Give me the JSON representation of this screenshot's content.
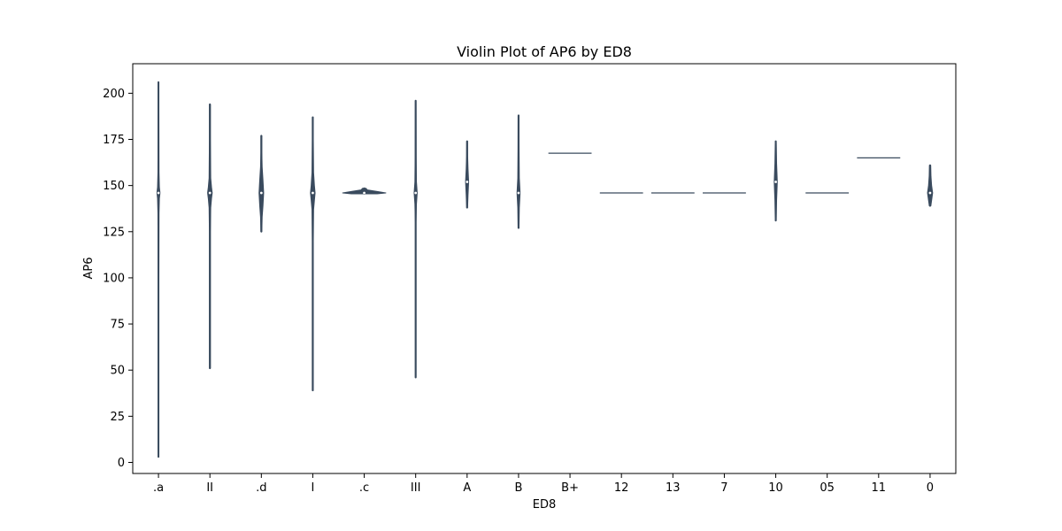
{
  "chart_data": {
    "type": "violin",
    "title": "Violin Plot of AP6 by ED8",
    "xlabel": "ED8",
    "ylabel": "AP6",
    "ylim": [
      -6,
      216
    ],
    "yticks": [
      0,
      25,
      50,
      75,
      100,
      125,
      150,
      175,
      200
    ],
    "grid": false,
    "legend": "none",
    "colors": {
      "violin": "#3a4b5e",
      "axes": "#000000",
      "background": "#ffffff"
    },
    "categories": [
      ".a",
      "II",
      ".d",
      "I",
      ".c",
      "III",
      "A",
      "B",
      "B+",
      "12",
      "13",
      "7",
      "10",
      "05",
      "11",
      "0"
    ],
    "violins": [
      {
        "category": ".a",
        "min": 3,
        "max": 206,
        "median": 146,
        "kind": "violin",
        "halfwidth": 0.03,
        "profile": [
          [
            3,
            0.25
          ],
          [
            100,
            0.25
          ],
          [
            135,
            0.35
          ],
          [
            143,
            0.6
          ],
          [
            146,
            1
          ],
          [
            149,
            0.6
          ],
          [
            157,
            0.35
          ],
          [
            190,
            0.25
          ],
          [
            206,
            0.25
          ]
        ]
      },
      {
        "category": "II",
        "min": 51,
        "max": 194,
        "median": 146,
        "kind": "violin",
        "halfwidth": 0.045,
        "profile": [
          [
            51,
            0.22
          ],
          [
            125,
            0.22
          ],
          [
            138,
            0.35
          ],
          [
            143,
            0.7
          ],
          [
            146,
            1
          ],
          [
            149,
            0.7
          ],
          [
            154,
            0.35
          ],
          [
            175,
            0.22
          ],
          [
            194,
            0.22
          ]
        ]
      },
      {
        "category": ".d",
        "min": 125,
        "max": 177,
        "median": 146,
        "kind": "violin",
        "halfwidth": 0.045,
        "profile": [
          [
            125,
            0.2
          ],
          [
            133,
            0.35
          ],
          [
            139,
            0.7
          ],
          [
            146,
            1
          ],
          [
            153,
            0.7
          ],
          [
            160,
            0.35
          ],
          [
            168,
            0.2
          ],
          [
            177,
            0.2
          ]
        ]
      },
      {
        "category": "I",
        "min": 39,
        "max": 187,
        "median": 146,
        "kind": "violin",
        "halfwidth": 0.045,
        "profile": [
          [
            39,
            0.22
          ],
          [
            120,
            0.22
          ],
          [
            137,
            0.35
          ],
          [
            142,
            0.7
          ],
          [
            146,
            1
          ],
          [
            150,
            0.7
          ],
          [
            157,
            0.35
          ],
          [
            175,
            0.22
          ],
          [
            187,
            0.22
          ]
        ]
      },
      {
        "category": ".c",
        "min": 145.5,
        "max": 148.5,
        "median": 146,
        "kind": "flat",
        "halfwidth": 0.42,
        "profile": [
          [
            145.5,
            0.6
          ],
          [
            146,
            1
          ],
          [
            146.8,
            0.6
          ],
          [
            147.6,
            0.15
          ],
          [
            148.5,
            0.08
          ]
        ]
      },
      {
        "category": "III",
        "min": 46,
        "max": 196,
        "median": 146,
        "kind": "violin",
        "halfwidth": 0.03,
        "profile": [
          [
            46,
            0.25
          ],
          [
            130,
            0.25
          ],
          [
            140,
            0.5
          ],
          [
            146,
            1
          ],
          [
            152,
            0.5
          ],
          [
            165,
            0.35
          ],
          [
            196,
            0.25
          ]
        ]
      },
      {
        "category": "A",
        "min": 138,
        "max": 174,
        "median": 152,
        "kind": "violin",
        "halfwidth": 0.03,
        "profile": [
          [
            138,
            0.3
          ],
          [
            145,
            0.6
          ],
          [
            152,
            1
          ],
          [
            159,
            0.6
          ],
          [
            166,
            0.35
          ],
          [
            174,
            0.3
          ]
        ]
      },
      {
        "category": "B",
        "min": 127,
        "max": 188,
        "median": 146,
        "kind": "violin",
        "halfwidth": 0.03,
        "profile": [
          [
            127,
            0.3
          ],
          [
            138,
            0.5
          ],
          [
            146,
            1
          ],
          [
            154,
            0.5
          ],
          [
            170,
            0.35
          ],
          [
            188,
            0.3
          ]
        ]
      },
      {
        "category": "B+",
        "value": 167.5,
        "kind": "line"
      },
      {
        "category": "12",
        "value": 146,
        "kind": "line"
      },
      {
        "category": "13",
        "value": 146,
        "kind": "line"
      },
      {
        "category": "7",
        "value": 146,
        "kind": "line"
      },
      {
        "category": "10",
        "min": 131,
        "max": 174,
        "median": 152,
        "kind": "violin",
        "halfwidth": 0.03,
        "profile": [
          [
            131,
            0.3
          ],
          [
            142,
            0.55
          ],
          [
            152,
            1
          ],
          [
            162,
            0.55
          ],
          [
            174,
            0.3
          ]
        ]
      },
      {
        "category": "05",
        "value": 146,
        "kind": "line"
      },
      {
        "category": "11",
        "value": 165,
        "kind": "line"
      },
      {
        "category": "0",
        "min": 139,
        "max": 161,
        "median": 146,
        "kind": "violin",
        "halfwidth": 0.05,
        "profile": [
          [
            139,
            0.3
          ],
          [
            142,
            0.6
          ],
          [
            146,
            1
          ],
          [
            150,
            0.6
          ],
          [
            155,
            0.35
          ],
          [
            161,
            0.25
          ]
        ]
      }
    ]
  }
}
